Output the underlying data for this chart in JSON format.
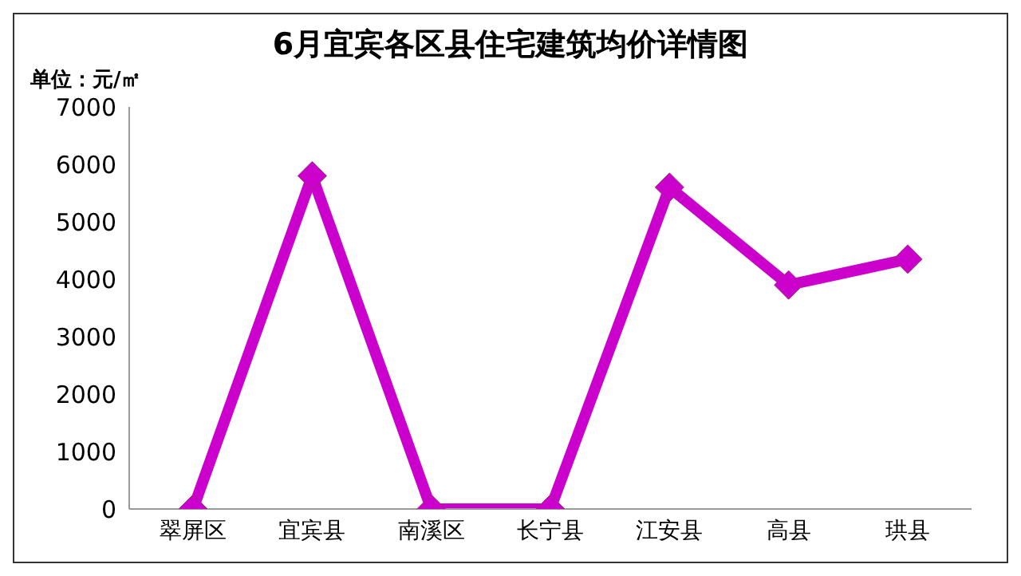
{
  "chart_data": {
    "type": "line",
    "title": "6月宜宾各区县住宅建筑均价详情图",
    "ylabel": "单位：元/㎡",
    "categories": [
      "翠屏区",
      "宜宾县",
      "南溪区",
      "长宁县",
      "江安县",
      "高县",
      "珙县"
    ],
    "series": [
      {
        "color": "#cc00cc",
        "values": [
          0,
          5800,
          0,
          0,
          5600,
          3900,
          4350
        ]
      }
    ],
    "ylim": [
      0,
      7000
    ],
    "yticks": [
      0,
      1000,
      2000,
      3000,
      4000,
      5000,
      6000,
      7000
    ],
    "grid": false,
    "legend": false,
    "marker": "diamond",
    "line_style": "solid"
  }
}
